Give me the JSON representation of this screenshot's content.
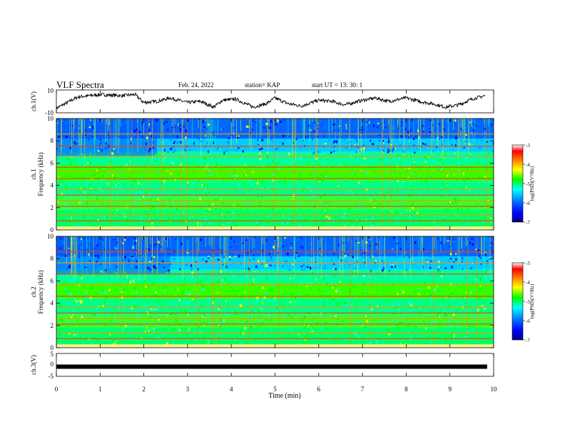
{
  "header": {
    "title": "VLF Spectra",
    "date": "Feb. 24, 2022",
    "station": "station= KAP",
    "start": "start  UT =   13: 30: 1"
  },
  "colors": {
    "waveform": "#000000",
    "colormap": [
      "#000080",
      "#0000ff",
      "#0080ff",
      "#00ffff",
      "#00ff00",
      "#ffff00",
      "#ff8000",
      "#ff0000",
      "#ffffff"
    ]
  },
  "chart_data": [
    {
      "type": "line",
      "panel": "ch1-waveform",
      "ylabel": "ch.1(V)",
      "ylim": [
        -10,
        10
      ],
      "y_ticks": [
        "10",
        "-10"
      ],
      "xlim": [
        0,
        10
      ],
      "x": [
        0,
        0.5,
        1,
        1.5,
        1.8,
        2,
        2.3,
        2.6,
        3,
        3.3,
        3.6,
        3.8,
        4.1,
        4.5,
        4.8,
        5,
        5.3,
        5.6,
        6,
        6.3,
        6.6,
        7,
        7.3,
        7.6,
        8,
        8.3,
        8.6,
        8.9,
        9.2,
        9.5,
        9.8
      ],
      "y": [
        -6,
        4,
        6,
        5,
        6,
        -1,
        0,
        3,
        -1,
        0,
        -5,
        1,
        2,
        -5,
        -2,
        3,
        -2,
        -4,
        1,
        0,
        -3,
        1,
        3,
        0,
        3,
        0,
        -2,
        -5,
        -3,
        2,
        5
      ]
    },
    {
      "type": "heatmap",
      "panel": "ch1-spectrogram",
      "ylabel_top": "ch.1",
      "ylabel": "Frequency (kHz)",
      "xlim": [
        0,
        10
      ],
      "ylim": [
        0,
        10
      ],
      "y_ticks": [
        "0",
        "2",
        "4",
        "6",
        "8",
        "10"
      ],
      "colorbar": {
        "label": "log(PSD)(V²/Hz)",
        "range": [
          -7,
          -3
        ],
        "ticks": [
          "-3",
          "-4",
          "-5",
          "-6",
          "-7"
        ]
      },
      "regime_change_min": 2.3,
      "description_bands_khz": [
        0.2,
        0.8,
        1.3,
        2.1,
        2.6,
        3.1,
        3.6,
        4.6,
        5.2,
        5.6,
        6.6,
        7.5,
        8.6
      ]
    },
    {
      "type": "heatmap",
      "panel": "ch2-spectrogram",
      "ylabel_top": "ch.2",
      "ylabel": "Frequency (kHz)",
      "xlim": [
        0,
        10
      ],
      "ylim": [
        0,
        10
      ],
      "y_ticks": [
        "0",
        "2",
        "4",
        "6",
        "8",
        "10"
      ],
      "colorbar": {
        "label": "log(PSD)(V²/Hz)",
        "range": [
          -7,
          -3
        ],
        "ticks": [
          "-3",
          "-4",
          "-5",
          "-6",
          "-7"
        ]
      },
      "regime_change_min": 2.6,
      "description_bands_khz": [
        0.2,
        0.8,
        1.3,
        2.1,
        2.6,
        3.1,
        3.6,
        4.6,
        5.6,
        6.6,
        7.6,
        8.6
      ]
    },
    {
      "type": "line",
      "panel": "ch3-waveform",
      "ylabel": "ch.3(V)",
      "ylim": [
        -5,
        5
      ],
      "y_ticks": [
        "5",
        "0",
        "-5"
      ],
      "xlim": [
        0,
        10
      ],
      "x": [
        0,
        9.85
      ],
      "y": [
        -0.8,
        -0.8
      ],
      "xlabel": "Time (min)",
      "x_ticks": [
        "0",
        "1",
        "2",
        "3",
        "4",
        "5",
        "6",
        "7",
        "8",
        "9",
        "10"
      ]
    }
  ]
}
